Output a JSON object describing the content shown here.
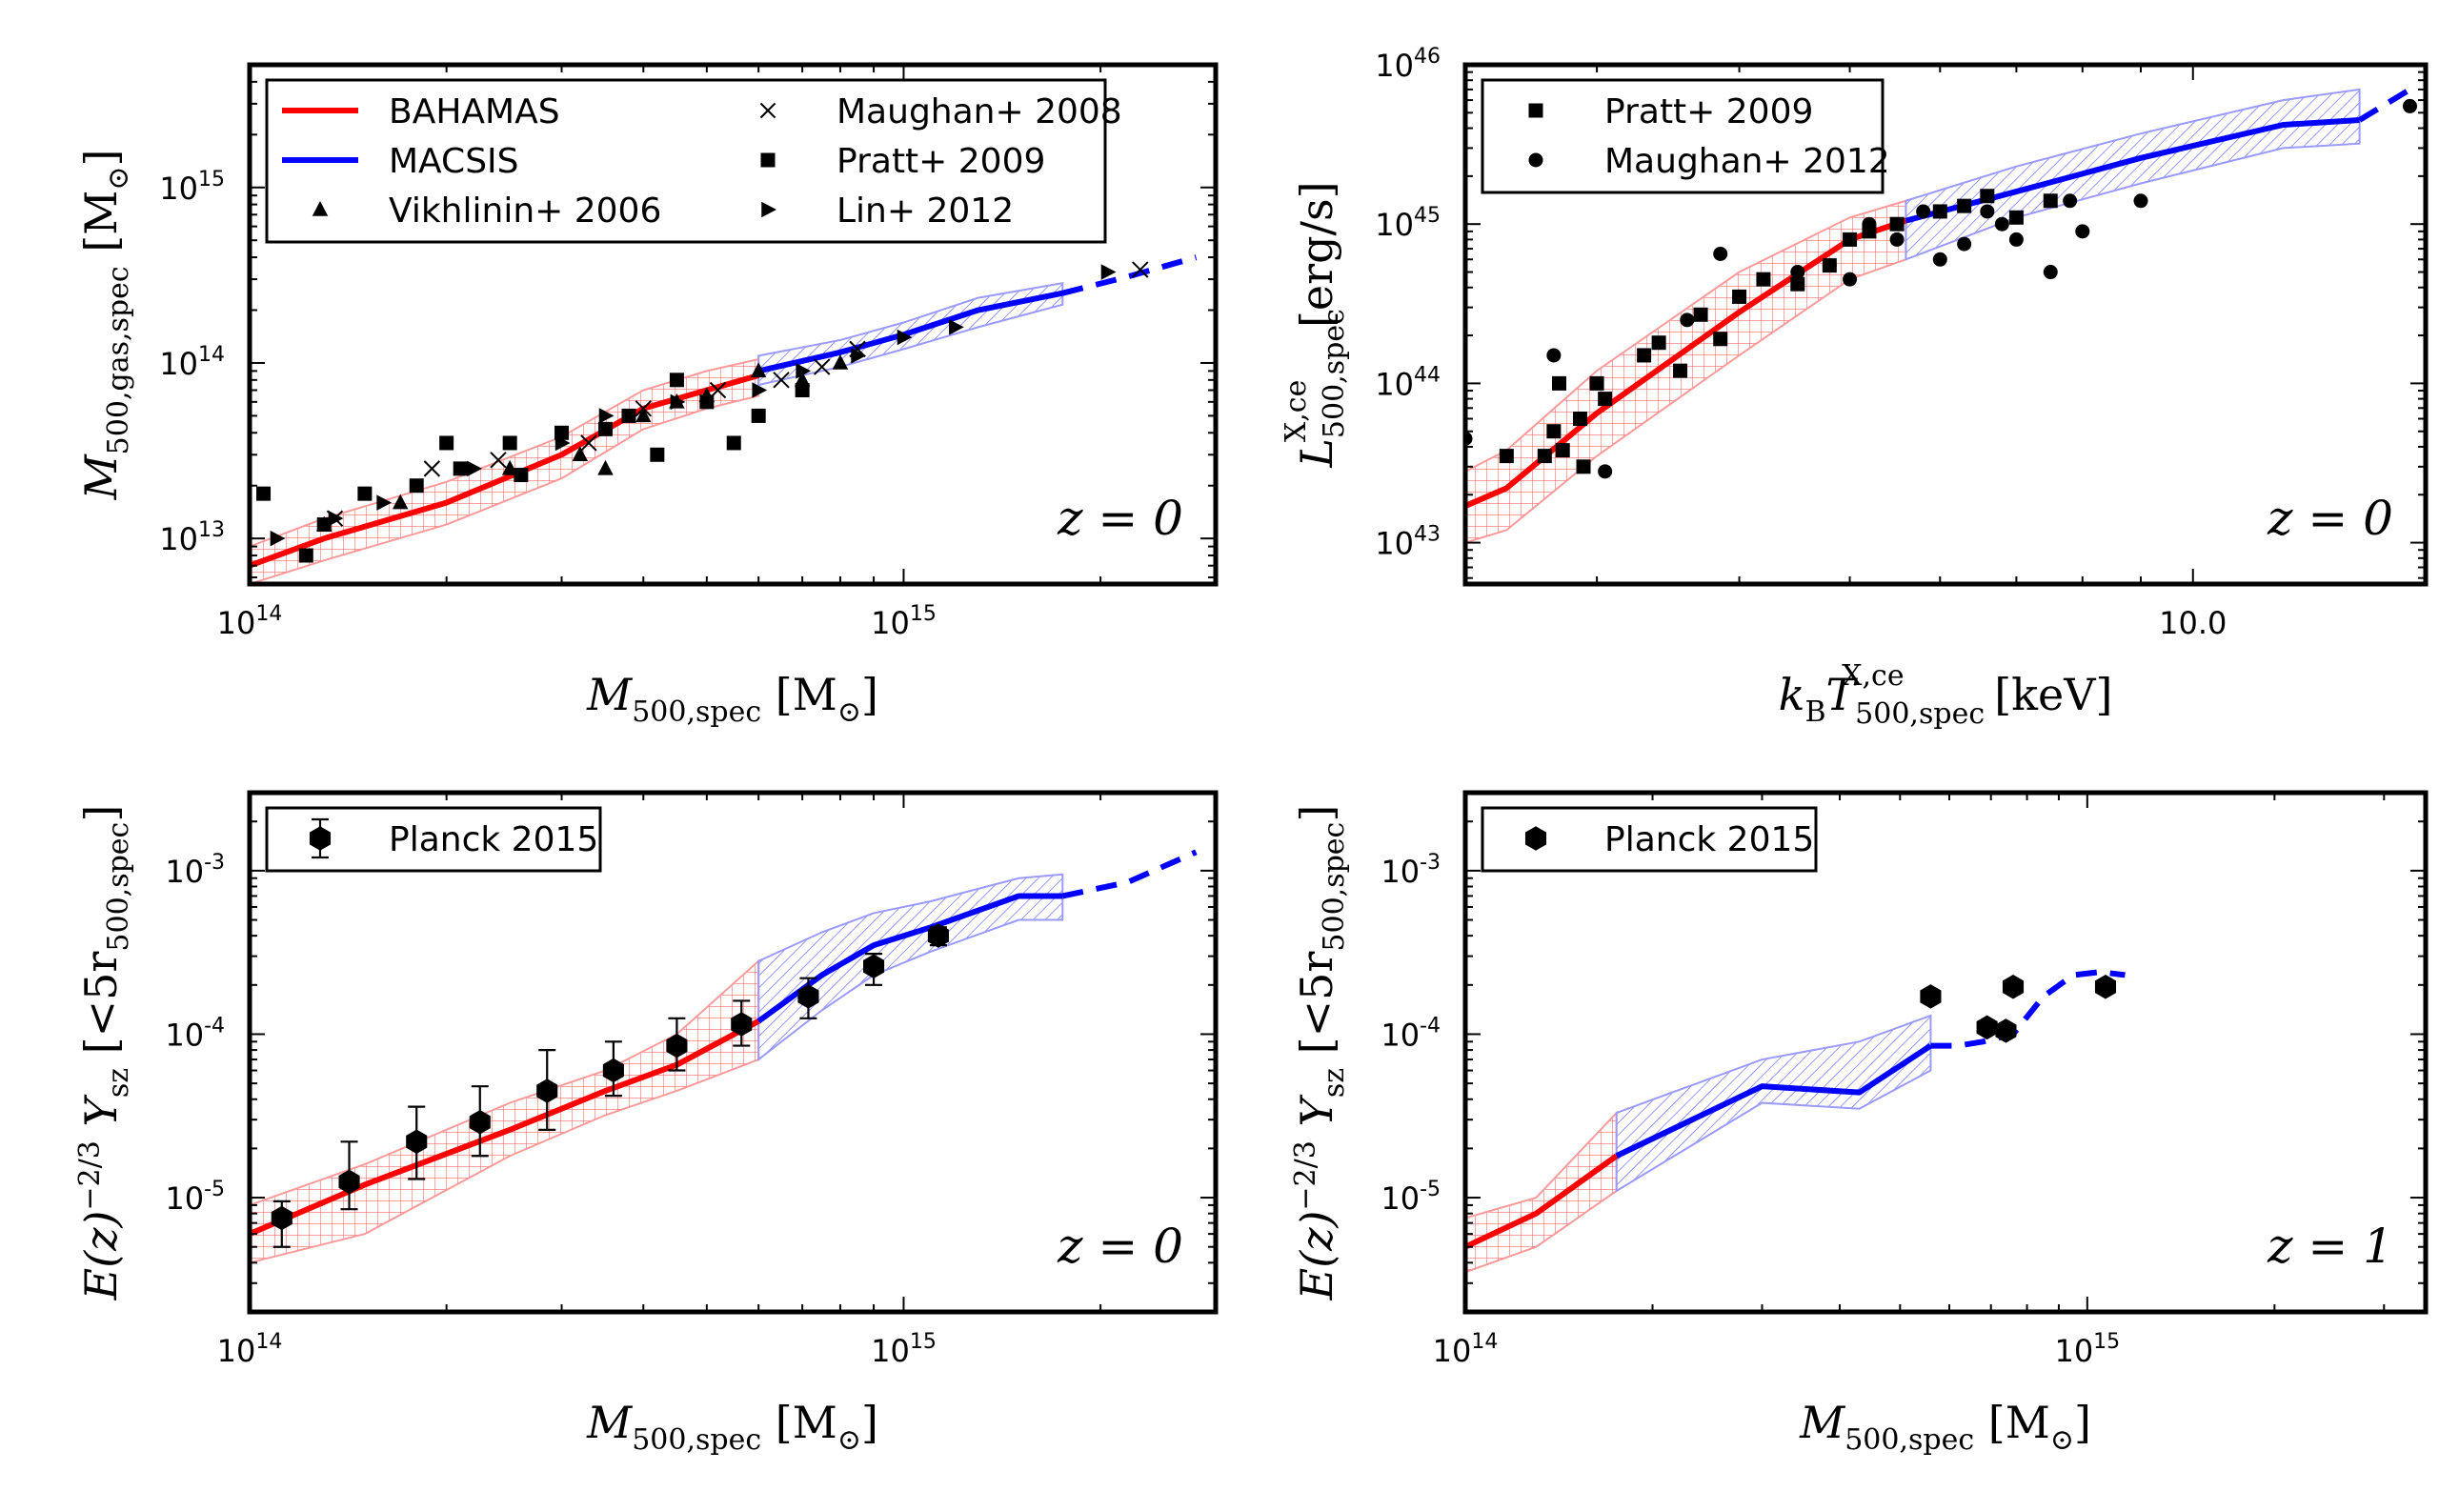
{
  "colors": {
    "bahamas": "#ff0000",
    "macsis": "#0000ff",
    "bahamas_fill": "#ff9a9a",
    "macsis_fill": "#9a9aff",
    "points": "#000000"
  },
  "chart_data": [
    {
      "id": "p1",
      "type": "line",
      "xscale": "log",
      "yscale": "log",
      "xlim": [
        100000000000000.0,
        3000000000000000.0
      ],
      "ylim": [
        5500000000000.0,
        5000000000000000.0
      ],
      "xticks": [
        {
          "v": 100000000000000.0,
          "b": "10",
          "e": "14"
        },
        {
          "v": 1000000000000000.0,
          "b": "10",
          "e": "15"
        }
      ],
      "yticks": [
        {
          "v": 10000000000000.0,
          "b": "10",
          "e": "13"
        },
        {
          "v": 100000000000000.0,
          "b": "10",
          "e": "14"
        },
        {
          "v": 1000000000000000.0,
          "b": "10",
          "e": "15"
        }
      ],
      "xlabel": {
        "sym": "M",
        "sub": "500,spec",
        "unit": "[M",
        "unit_end": "]"
      },
      "ylabel": {
        "sym": "M",
        "sub": "500,gas,spec",
        "unit": "[M",
        "unit_end": "]"
      },
      "zlabel": "z = 0",
      "legend": [
        {
          "label": "BAHAMAS",
          "marker": "line-red"
        },
        {
          "label": "MACSIS",
          "marker": "line-blue"
        },
        {
          "label": "Vikhlinin+ 2006",
          "marker": "triangle"
        },
        {
          "label": "Maughan+ 2008",
          "marker": "x"
        },
        {
          "label": "Pratt+ 2009",
          "marker": "square"
        },
        {
          "label": "Lin+ 2012",
          "marker": "tri-right"
        }
      ],
      "bahamas": {
        "x": [
          100000000000000.0,
          130000000000000.0,
          200000000000000.0,
          300000000000000.0,
          400000000000000.0,
          500000000000000.0,
          600000000000000.0
        ],
        "y": [
          7000000000000.0,
          10000000000000.0,
          16000000000000.0,
          30000000000000.0,
          55000000000000.0,
          70000000000000.0,
          85000000000000.0
        ],
        "lo": [
          5500000000000.0,
          7500000000000.0,
          12000000000000.0,
          22000000000000.0,
          42000000000000.0,
          55000000000000.0,
          65000000000000.0
        ],
        "hi": [
          9000000000000.0,
          13000000000000.0,
          21000000000000.0,
          38000000000000.0,
          70000000000000.0,
          90000000000000.0,
          105000000000000.0
        ]
      },
      "macsis": {
        "x": [
          600000000000000.0,
          800000000000000.0,
          1000000000000000.0,
          1300000000000000.0,
          1750000000000000.0
        ],
        "y": [
          90000000000000.0,
          115000000000000.0,
          145000000000000.0,
          200000000000000.0,
          250000000000000.0
        ],
        "lo": [
          75000000000000.0,
          95000000000000.0,
          120000000000000.0,
          160000000000000.0,
          215000000000000.0
        ],
        "hi": [
          110000000000000.0,
          135000000000000.0,
          170000000000000.0,
          235000000000000.0,
          285000000000000.0
        ]
      },
      "macsis_dashed": {
        "x": [
          1750000000000000.0,
          2200000000000000.0,
          2800000000000000.0
        ],
        "y": [
          250000000000000.0,
          310000000000000.0,
          400000000000000.0
        ]
      },
      "points": [
        {
          "m": "square",
          "x": [
            105000000000000.0,
            122000000000000.0,
            130000000000000.0,
            150000000000000.0,
            180000000000000.0,
            200000000000000.0,
            210000000000000.0,
            250000000000000.0,
            260000000000000.0,
            300000000000000.0,
            350000000000000.0,
            380000000000000.0,
            420000000000000.0,
            450000000000000.0,
            500000000000000.0,
            550000000000000.0,
            600000000000000.0,
            700000000000000.0
          ],
          "y": [
            18000000000000.0,
            8000000000000.0,
            12000000000000.0,
            18000000000000.0,
            20000000000000.0,
            35000000000000.0,
            25000000000000.0,
            35000000000000.0,
            23000000000000.0,
            40000000000000.0,
            42000000000000.0,
            50000000000000.0,
            30000000000000.0,
            80000000000000.0,
            60000000000000.0,
            35000000000000.0,
            50000000000000.0,
            70000000000000.0
          ]
        },
        {
          "m": "triangle",
          "x": [
            130000000000000.0,
            170000000000000.0,
            250000000000000.0,
            320000000000000.0,
            350000000000000.0,
            400000000000000.0,
            450000000000000.0,
            500000000000000.0,
            600000000000000.0,
            700000000000000.0,
            800000000000000.0
          ],
          "y": [
            12000000000000.0,
            16000000000000.0,
            25000000000000.0,
            30000000000000.0,
            25000000000000.0,
            50000000000000.0,
            60000000000000.0,
            65000000000000.0,
            90000000000000.0,
            80000000000000.0,
            100000000000000.0
          ]
        },
        {
          "m": "tri-right",
          "x": [
            110000000000000.0,
            135000000000000.0,
            160000000000000.0,
            220000000000000.0,
            300000000000000.0,
            350000000000000.0,
            450000000000000.0,
            600000000000000.0,
            700000000000000.0,
            850000000000000.0,
            1000000000000000.0,
            1200000000000000.0,
            2050000000000000.0
          ],
          "y": [
            10000000000000.0,
            13000000000000.0,
            16000000000000.0,
            25000000000000.0,
            35000000000000.0,
            50000000000000.0,
            60000000000000.0,
            70000000000000.0,
            90000000000000.0,
            110000000000000.0,
            140000000000000.0,
            160000000000000.0,
            330000000000000.0
          ]
        },
        {
          "m": "x",
          "x": [
            135000000000000.0,
            190000000000000.0,
            240000000000000.0,
            330000000000000.0,
            400000000000000.0,
            520000000000000.0,
            650000000000000.0,
            750000000000000.0,
            850000000000000.0,
            2300000000000000.0
          ],
          "y": [
            13000000000000.0,
            25000000000000.0,
            28000000000000.0,
            35000000000000.0,
            55000000000000.0,
            70000000000000.0,
            80000000000000.0,
            95000000000000.0,
            120000000000000.0,
            340000000000000.0
          ]
        }
      ]
    },
    {
      "id": "p2",
      "type": "line",
      "xscale": "log",
      "yscale": "log",
      "xlim": [
        2.3,
        16
      ],
      "ylim": [
        5.5e+42,
        1e+46
      ],
      "xticks": [
        {
          "v": 10,
          "text": "10.0"
        }
      ],
      "yticks": [
        {
          "v": 1e+43,
          "b": "10",
          "e": "43"
        },
        {
          "v": 1e+44,
          "b": "10",
          "e": "44"
        },
        {
          "v": 1e+45,
          "b": "10",
          "e": "45"
        },
        {
          "v": 1e+46,
          "b": "10",
          "e": "46"
        }
      ],
      "xlabel": {
        "sym": "k",
        "sub": "B",
        "sym2": "T",
        "sub2": "500,spec",
        "sup2": "X,ce",
        "unit": "[keV]"
      },
      "ylabel": {
        "sym": "L",
        "sub": "500,spec",
        "sup": "X,ce",
        "unit": "[erg/s]"
      },
      "zlabel": "z = 0",
      "legend": [
        {
          "label": "Pratt+ 2009",
          "marker": "square"
        },
        {
          "label": "Maughan+ 2012",
          "marker": "circle"
        }
      ],
      "bahamas": {
        "x": [
          2.3,
          2.5,
          3,
          4,
          5,
          5.6
        ],
        "y": [
          1.7e+43,
          2.2e+43,
          6.5e+43,
          2.8e+44,
          8e+44,
          1.05e+45
        ],
        "lo": [
          1e+43,
          1.2e+43,
          3.5e+43,
          1.5e+44,
          4.5e+44,
          6e+44
        ],
        "hi": [
          2.8e+43,
          3.8e+43,
          1.2e+44,
          5e+44,
          1.1e+45,
          1.4e+45
        ]
      },
      "macsis": {
        "x": [
          5.6,
          7,
          9,
          12,
          14
        ],
        "y": [
          1.05e+45,
          1.6e+45,
          2.6e+45,
          4.2e+45,
          4.5e+45
        ],
        "lo": [
          6e+44,
          1.1e+45,
          1.8e+45,
          3e+45,
          3.2e+45
        ],
        "hi": [
          1.4e+45,
          2.3e+45,
          3.7e+45,
          6e+45,
          7e+45
        ]
      },
      "macsis_dashed": {
        "x": [
          14,
          15.5
        ],
        "y": [
          4.5e+45,
          7e+45
        ]
      },
      "points": [
        {
          "m": "square",
          "x": [
            2.5,
            2.7,
            2.75,
            2.78,
            2.8,
            2.9,
            2.92,
            3.0,
            3.05,
            3.3,
            3.4,
            3.55,
            3.7,
            3.85,
            4.0,
            4.2,
            4.5,
            4.8,
            5.0,
            5.2,
            5.5,
            6.0,
            6.3,
            6.6,
            7.0,
            7.5
          ],
          "y": [
            3.5e+43,
            3.5e+43,
            5e+43,
            1e+44,
            3.8e+43,
            6e+43,
            3e+43,
            1e+44,
            8e+43,
            1.5e+44,
            1.8e+44,
            1.2e+44,
            2.7e+44,
            1.9e+44,
            3.5e+44,
            4.5e+44,
            4.2e+44,
            5.5e+44,
            8e+44,
            9e+44,
            1e+45,
            1.2e+45,
            1.3e+45,
            1.5e+45,
            1.1e+45,
            1.4e+45
          ]
        },
        {
          "m": "circle",
          "x": [
            2.3,
            2.75,
            3.05,
            3.6,
            3.85,
            4.0,
            4.5,
            4.8,
            5.0,
            5.2,
            5.5,
            5.8,
            6.0,
            6.3,
            6.6,
            6.8,
            7.0,
            7.5,
            7.8,
            8.0,
            9.0,
            15.5
          ],
          "y": [
            4.5e+43,
            1.5e+44,
            2.8e+43,
            2.5e+44,
            6.5e+44,
            3.5e+44,
            5e+44,
            5.5e+44,
            4.5e+44,
            1e+45,
            8e+44,
            1.2e+45,
            6e+44,
            7.5e+44,
            1.2e+45,
            1e+45,
            8e+44,
            5e+44,
            1.4e+45,
            9e+44,
            1.4e+45,
            5.5e+45
          ]
        }
      ]
    },
    {
      "id": "p3",
      "type": "line",
      "xscale": "log",
      "yscale": "log",
      "xlim": [
        100000000000000.0,
        3000000000000000.0
      ],
      "ylim": [
        2e-06,
        0.003
      ],
      "xticks": [
        {
          "v": 100000000000000.0,
          "b": "10",
          "e": "14"
        },
        {
          "v": 1000000000000000.0,
          "b": "10",
          "e": "15"
        }
      ],
      "yticks": [
        {
          "v": 1e-05,
          "b": "10",
          "e": "-5"
        },
        {
          "v": 0.0001,
          "b": "10",
          "e": "-4"
        },
        {
          "v": 0.001,
          "b": "10",
          "e": "-3"
        }
      ],
      "xlabel": {
        "sym": "M",
        "sub": "500,spec",
        "unit": "[M",
        "unit_end": "]"
      },
      "ylabel": {
        "sym": "E(z)",
        "sup": "−2/3",
        "sym2": "Y",
        "sub2": "sz",
        "unit": "[<5r",
        "unit_sub": "500,spec",
        "unit_end": "]"
      },
      "zlabel": "z = 0",
      "legend": [
        {
          "label": "Planck 2015",
          "marker": "hex-err"
        }
      ],
      "bahamas": {
        "x": [
          100000000000000.0,
          150000000000000.0,
          250000000000000.0,
          350000000000000.0,
          450000000000000.0,
          600000000000000.0
        ],
        "y": [
          6e-06,
          1.2e-05,
          2.6e-05,
          4.5e-05,
          6.5e-05,
          0.00012
        ],
        "lo": [
          4e-06,
          6e-06,
          1.8e-05,
          3.2e-05,
          4.5e-05,
          7e-05
        ],
        "hi": [
          9e-06,
          1.6e-05,
          3.8e-05,
          6e-05,
          0.0001,
          0.00028
        ]
      },
      "macsis": {
        "x": [
          600000000000000.0,
          750000000000000.0,
          900000000000000.0,
          1100000000000000.0,
          1500000000000000.0,
          1750000000000000.0
        ],
        "y": [
          0.00012,
          0.00023,
          0.00035,
          0.00045,
          0.0007,
          0.0007
        ],
        "lo": [
          7e-05,
          0.00014,
          0.00023,
          0.00032,
          0.0005,
          0.0005
        ],
        "hi": [
          0.00028,
          0.00042,
          0.00055,
          0.00065,
          0.0009,
          0.00095
        ]
      },
      "macsis_dashed": {
        "x": [
          1750000000000000.0,
          2200000000000000.0,
          2800000000000000.0
        ],
        "y": [
          0.0007,
          0.00085,
          0.0013
        ]
      },
      "points": [
        {
          "m": "hex",
          "x": [
            112000000000000.0,
            142000000000000.0,
            180000000000000.0,
            225000000000000.0,
            285000000000000.0,
            360000000000000.0,
            450000000000000.0,
            565000000000000.0,
            715000000000000.0,
            900000000000000.0,
            1130000000000000.0
          ],
          "y": [
            7.5e-06,
            1.25e-05,
            2.2e-05,
            2.9e-05,
            4.5e-05,
            6e-05,
            8.5e-05,
            0.000115,
            0.00017,
            0.00026,
            0.0004
          ],
          "lo": [
            5e-06,
            8.5e-06,
            1.3e-05,
            1.8e-05,
            2.6e-05,
            4.2e-05,
            6e-05,
            8.5e-05,
            0.000125,
            0.0002,
            0.00035
          ],
          "hi": [
            9.5e-06,
            2.2e-05,
            3.6e-05,
            4.8e-05,
            8e-05,
            9e-05,
            0.000125,
            0.00016,
            0.00022,
            0.00031,
            0.00045
          ]
        }
      ]
    },
    {
      "id": "p4",
      "type": "line",
      "xscale": "log",
      "yscale": "log",
      "xlim": [
        100000000000000.0,
        3500000000000000.0
      ],
      "ylim": [
        2e-06,
        0.003
      ],
      "xticks": [
        {
          "v": 100000000000000.0,
          "b": "10",
          "e": "14"
        },
        {
          "v": 1000000000000000.0,
          "b": "10",
          "e": "15"
        }
      ],
      "yticks": [
        {
          "v": 1e-05,
          "b": "10",
          "e": "-5"
        },
        {
          "v": 0.0001,
          "b": "10",
          "e": "-4"
        },
        {
          "v": 0.001,
          "b": "10",
          "e": "-3"
        }
      ],
      "xlabel": {
        "sym": "M",
        "sub": "500,spec",
        "unit": "[M",
        "unit_end": "]"
      },
      "ylabel": {
        "sym": "E(z)",
        "sup": "−2/3",
        "sym2": "Y",
        "sub2": "sz",
        "unit": "[<5r",
        "unit_sub": "500,spec",
        "unit_end": "]"
      },
      "zlabel": "z = 1",
      "legend": [
        {
          "label": "Planck 2015",
          "marker": "hex"
        }
      ],
      "bahamas": {
        "x": [
          100000000000000.0,
          130000000000000.0,
          175000000000000.0
        ],
        "y": [
          5e-06,
          8e-06,
          1.8e-05
        ],
        "lo": [
          3.5e-06,
          5e-06,
          1.1e-05
        ],
        "hi": [
          7.5e-06,
          1e-05,
          3.3e-05
        ]
      },
      "macsis": {
        "x": [
          175000000000000.0,
          300000000000000.0,
          430000000000000.0,
          560000000000000.0
        ],
        "y": [
          1.8e-05,
          4.8e-05,
          4.4e-05,
          8.5e-05
        ],
        "lo": [
          1.1e-05,
          3.8e-05,
          3.5e-05,
          6e-05
        ],
        "hi": [
          3.3e-05,
          7e-05,
          9e-05,
          0.00013
        ]
      },
      "macsis_dashed": {
        "x": [
          560000000000000.0,
          620000000000000.0,
          680000000000000.0,
          760000000000000.0,
          850000000000000.0,
          950000000000000.0,
          1050000000000000.0,
          1150000000000000.0
        ],
        "y": [
          8.5e-05,
          8.5e-05,
          9e-05,
          0.0001,
          0.00017,
          0.00023,
          0.00024,
          0.00023
        ]
      },
      "points": [
        {
          "m": "hex",
          "x": [
            560000000000000.0,
            690000000000000.0,
            740000000000000.0,
            760000000000000.0,
            1070000000000000.0
          ],
          "y": [
            0.00017,
            0.00011,
            0.000105,
            0.000195,
            0.000195
          ]
        }
      ]
    }
  ]
}
